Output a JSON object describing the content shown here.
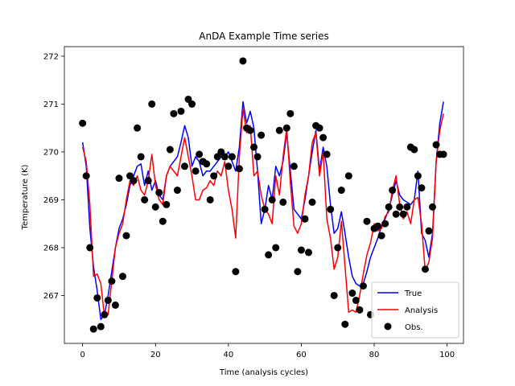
{
  "chart_data": {
    "type": "line",
    "title": "AnDA Example Time series",
    "xlabel": "Time (analysis cycles)",
    "ylabel": "Temperature (K)",
    "xlim": [
      -5,
      104.5
    ],
    "ylim": [
      266.0,
      272.2
    ],
    "xticks": [
      0,
      20,
      40,
      60,
      80,
      100
    ],
    "yticks": [
      267,
      268,
      269,
      270,
      271,
      272
    ],
    "grid": false,
    "legend_position": "bottom-right",
    "colors": {
      "True": "#0000ff",
      "Analysis": "#ff0000",
      "Obs.": "#000000"
    },
    "series": [
      {
        "name": "True",
        "style": "line",
        "x": [
          0,
          1,
          2,
          3,
          4,
          5,
          6,
          7,
          8,
          9,
          10,
          11,
          12,
          13,
          14,
          15,
          16,
          17,
          18,
          19,
          20,
          21,
          22,
          23,
          24,
          25,
          26,
          27,
          28,
          29,
          30,
          31,
          32,
          33,
          34,
          35,
          36,
          37,
          38,
          39,
          40,
          41,
          42,
          43,
          44,
          45,
          46,
          47,
          48,
          49,
          50,
          51,
          52,
          53,
          54,
          55,
          56,
          57,
          58,
          59,
          60,
          61,
          62,
          63,
          64,
          65,
          66,
          67,
          68,
          69,
          70,
          71,
          72,
          73,
          74,
          75,
          76,
          77,
          78,
          79,
          80,
          81,
          82,
          83,
          84,
          85,
          86,
          87,
          88,
          89,
          90,
          91,
          92,
          93,
          94,
          95,
          96,
          97,
          98,
          99
        ],
        "values": [
          270.2,
          269.7,
          268.4,
          267.6,
          267.1,
          266.5,
          266.6,
          267.0,
          267.5,
          268.0,
          268.4,
          268.6,
          268.9,
          269.3,
          269.5,
          269.7,
          269.75,
          269.3,
          269.6,
          269.2,
          269.4,
          269.1,
          269.0,
          269.5,
          269.7,
          269.8,
          269.9,
          270.2,
          270.55,
          270.3,
          269.7,
          269.9,
          269.8,
          269.5,
          269.6,
          269.6,
          269.7,
          269.8,
          269.9,
          269.9,
          270.0,
          269.8,
          269.6,
          270.1,
          271.05,
          270.6,
          270.85,
          270.5,
          269.6,
          268.5,
          268.8,
          269.3,
          269.0,
          269.7,
          269.5,
          269.8,
          270.4,
          269.6,
          268.8,
          268.7,
          268.6,
          269.0,
          269.5,
          270.0,
          270.45,
          269.6,
          270.1,
          269.7,
          268.9,
          268.3,
          268.4,
          268.75,
          268.3,
          267.8,
          267.4,
          267.25,
          267.2,
          267.25,
          267.5,
          267.8,
          268.0,
          268.2,
          268.45,
          268.6,
          268.8,
          269.1,
          269.4,
          269.1,
          269.0,
          268.95,
          268.9,
          269.0,
          269.6,
          268.3,
          268.15,
          267.8,
          268.3,
          269.8,
          270.6,
          271.05
        ]
      },
      {
        "name": "Analysis",
        "style": "line",
        "x": [
          0,
          1,
          2,
          3,
          4,
          5,
          6,
          7,
          8,
          9,
          10,
          11,
          12,
          13,
          14,
          15,
          16,
          17,
          18,
          19,
          20,
          21,
          22,
          23,
          24,
          25,
          26,
          27,
          28,
          29,
          30,
          31,
          32,
          33,
          34,
          35,
          36,
          37,
          38,
          39,
          40,
          41,
          42,
          43,
          44,
          45,
          46,
          47,
          48,
          49,
          50,
          51,
          52,
          53,
          54,
          55,
          56,
          57,
          58,
          59,
          60,
          61,
          62,
          63,
          64,
          65,
          66,
          67,
          68,
          69,
          70,
          71,
          72,
          73,
          74,
          75,
          76,
          77,
          78,
          79,
          80,
          81,
          82,
          83,
          84,
          85,
          86,
          87,
          88,
          89,
          90,
          91,
          92,
          93,
          94,
          95,
          96,
          97,
          98,
          99
        ],
        "values": [
          270.1,
          269.8,
          268.9,
          267.4,
          267.45,
          267.25,
          266.55,
          266.6,
          267.3,
          268.0,
          268.3,
          268.5,
          269.0,
          269.4,
          269.3,
          269.5,
          269.2,
          269.1,
          269.4,
          269.95,
          269.3,
          269.0,
          268.9,
          269.5,
          269.7,
          269.6,
          269.5,
          269.9,
          270.3,
          269.9,
          269.5,
          269.0,
          269.0,
          269.2,
          269.25,
          269.4,
          269.3,
          269.6,
          269.5,
          269.8,
          269.2,
          268.8,
          268.2,
          269.9,
          270.9,
          270.4,
          270.55,
          269.5,
          269.6,
          269.1,
          268.8,
          268.7,
          268.5,
          269.5,
          269.1,
          269.9,
          270.5,
          269.35,
          268.45,
          268.3,
          268.5,
          269.1,
          269.5,
          270.2,
          270.4,
          269.5,
          270.0,
          268.6,
          268.2,
          267.55,
          267.8,
          268.55,
          267.6,
          266.65,
          266.7,
          266.65,
          267.0,
          267.45,
          267.85,
          268.1,
          268.5,
          268.35,
          268.4,
          268.65,
          268.75,
          269.2,
          269.5,
          268.9,
          268.6,
          268.75,
          268.5,
          269.0,
          269.05,
          268.5,
          267.5,
          267.7,
          268.2,
          269.8,
          270.45,
          270.8
        ]
      },
      {
        "name": "Obs.",
        "style": "scatter",
        "x": [
          0,
          1,
          2,
          3,
          4,
          5,
          6,
          7,
          8,
          9,
          10,
          11,
          12,
          13,
          14,
          15,
          16,
          17,
          18,
          19,
          20,
          21,
          22,
          23,
          24,
          25,
          26,
          27,
          28,
          29,
          30,
          31,
          32,
          33,
          34,
          35,
          36,
          37,
          38,
          39,
          40,
          41,
          42,
          43,
          44,
          45,
          46,
          47,
          48,
          49,
          50,
          51,
          52,
          53,
          54,
          55,
          56,
          57,
          58,
          59,
          60,
          61,
          62,
          63,
          64,
          65,
          66,
          67,
          68,
          69,
          70,
          71,
          72,
          73,
          74,
          75,
          76,
          77,
          78,
          79,
          80,
          81,
          82,
          83,
          84,
          85,
          86,
          87,
          88,
          89,
          90,
          91,
          92,
          93,
          94,
          95,
          96,
          97,
          98,
          99
        ],
        "values": [
          270.6,
          269.5,
          268.0,
          266.3,
          266.95,
          266.35,
          266.6,
          266.9,
          267.3,
          266.8,
          269.45,
          267.4,
          268.25,
          269.5,
          269.4,
          270.5,
          269.9,
          269.0,
          269.4,
          271.0,
          268.85,
          269.15,
          268.55,
          268.9,
          270.05,
          270.8,
          269.2,
          270.85,
          269.7,
          271.1,
          271.0,
          269.6,
          269.95,
          269.8,
          269.75,
          269.0,
          269.5,
          269.9,
          270.0,
          269.9,
          269.7,
          269.9,
          267.5,
          269.65,
          271.9,
          270.5,
          270.45,
          270.1,
          269.9,
          270.35,
          268.8,
          267.85,
          269.0,
          268.0,
          270.45,
          268.95,
          270.5,
          270.8,
          269.7,
          267.5,
          267.95,
          268.6,
          267.9,
          268.95,
          270.55,
          270.5,
          270.3,
          269.95,
          268.8,
          267.0,
          268.0,
          269.2,
          266.4,
          269.5,
          267.05,
          266.9,
          266.7,
          267.2,
          268.55,
          266.6,
          268.4,
          268.45,
          268.25,
          268.5,
          268.85,
          269.2,
          268.7,
          268.85,
          268.7,
          268.85,
          270.1,
          270.05,
          269.5,
          269.25,
          267.55,
          268.35,
          268.85,
          270.15,
          269.95,
          269.95
        ]
      }
    ]
  }
}
